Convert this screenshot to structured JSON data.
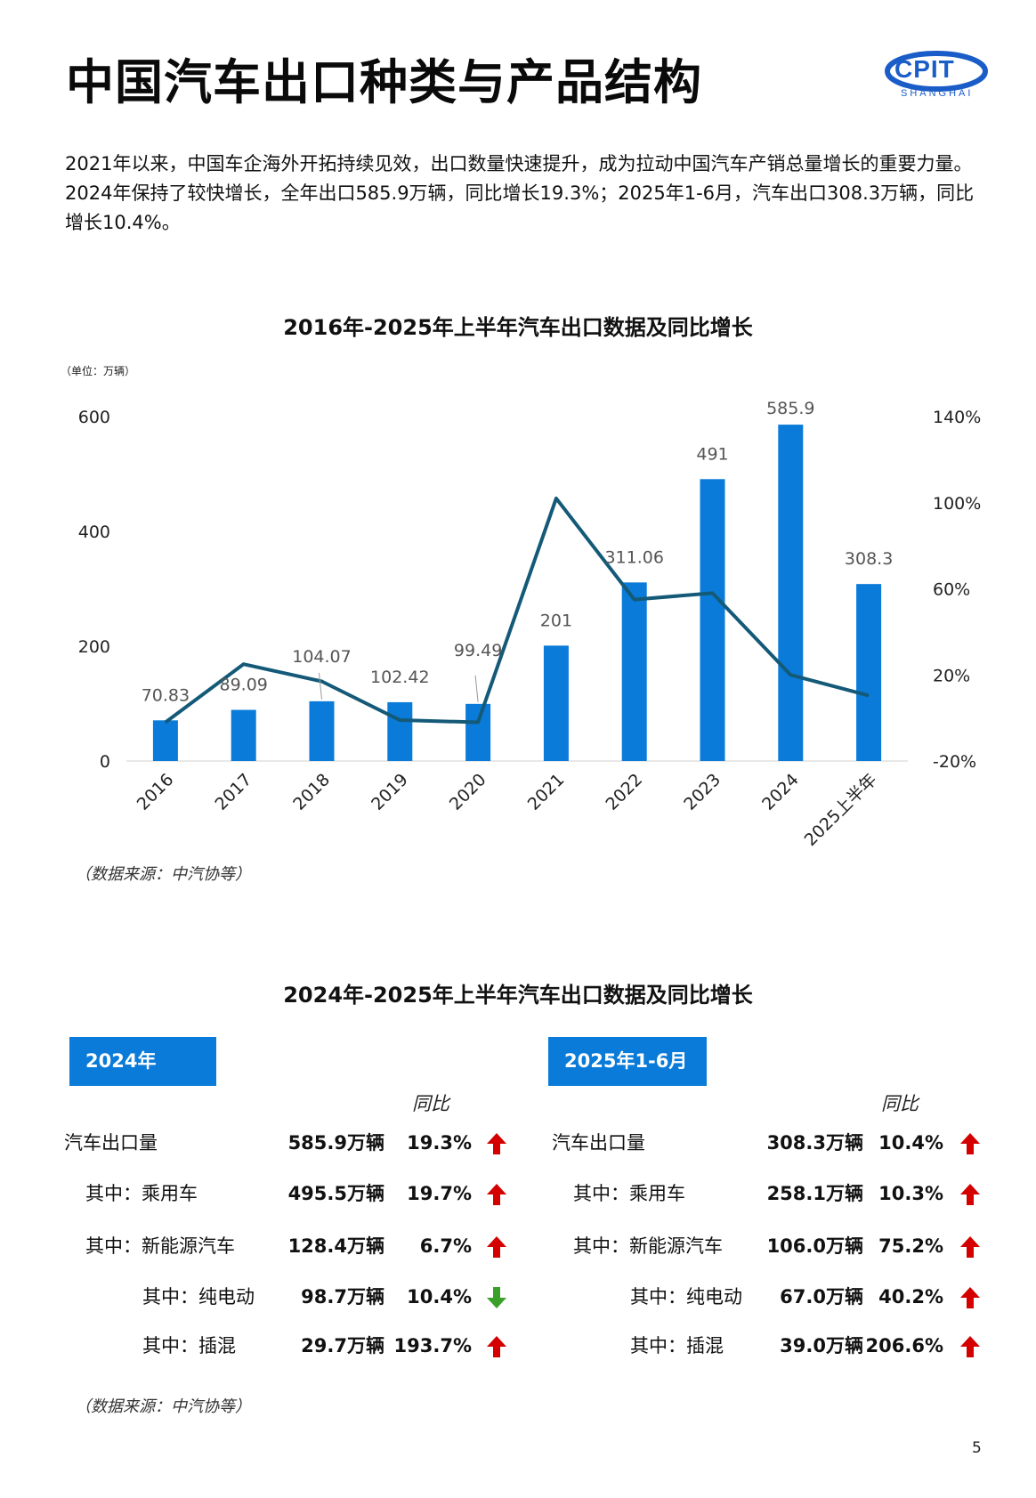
{
  "header": {
    "title": "中国汽车出口种类与产品结构",
    "logo_text": "CPIT",
    "logo_sub": "SHANGHAI"
  },
  "intro": {
    "lines": [
      "2021年以来，中国车企海外开拓持续见效，出口数量快速提升，成为拉动中国汽车产销总量增长的重要力量。",
      "2024年保持了较快增长，全年出口585.9万辆，同比增长19.3%；2025年1-6月，汽车出口308.3万辆，同比",
      "增长10.4%。"
    ]
  },
  "chart_data": {
    "type": "bar",
    "title": "2016年-2025年上半年汽车出口数据及同比增长",
    "unit_label": "（单位：万辆）",
    "categories": [
      "2016",
      "2017",
      "2018",
      "2019",
      "2020",
      "2021",
      "2022",
      "2023",
      "2024",
      "2025上半年"
    ],
    "series": [
      {
        "values": [
          70.83,
          89.09,
          104.07,
          102.42,
          99.49,
          201,
          311.06,
          491,
          585.9,
          308.3
        ],
        "color": "#0a7bd8"
      },
      {
        "type": "line",
        "axis": "right",
        "values": [
          -2,
          25,
          17,
          -1,
          -2,
          102,
          55,
          58,
          20,
          10.4
        ],
        "color": "#145a78"
      }
    ],
    "data_labels": [
      "70.83",
      "89.09",
      "104.07",
      "102.42",
      "99.49",
      "201",
      "311.06",
      "491",
      "585.9",
      "308.3"
    ],
    "ylim": [
      0,
      600
    ],
    "yticks": [
      "0",
      "200",
      "400",
      "600"
    ],
    "y2lim": [
      -20,
      140
    ],
    "y2ticks": [
      "-20%",
      "20%",
      "60%",
      "100%",
      "140%"
    ],
    "grid": false,
    "legend": "none"
  },
  "source1": "（数据来源：中汽协等）",
  "table_title": "2024年-2025年上半年汽车出口数据及同比增长",
  "panels": [
    {
      "heading": "2024年",
      "yoy_label": "同比",
      "rows": [
        {
          "label": "汽车出口量",
          "value": "585.9万辆",
          "pct": "19.3%",
          "trend": "up"
        },
        {
          "label": "其中：乘用车",
          "value": "495.5万辆",
          "pct": "19.7%",
          "trend": "up"
        },
        {
          "label": "其中：新能源汽车",
          "value": "128.4万辆",
          "pct": "6.7%",
          "trend": "up"
        },
        {
          "label": "其中：纯电动",
          "value": "98.7万辆",
          "pct": "10.4%",
          "trend": "down"
        },
        {
          "label": "其中：插混",
          "value": "29.7万辆",
          "pct": "193.7%",
          "trend": "up"
        }
      ]
    },
    {
      "heading": "2025年1-6月",
      "yoy_label": "同比",
      "rows": [
        {
          "label": "汽车出口量",
          "value": "308.3万辆",
          "pct": "10.4%",
          "trend": "up"
        },
        {
          "label": "其中：乘用车",
          "value": "258.1万辆",
          "pct": "10.3%",
          "trend": "up"
        },
        {
          "label": "其中：新能源汽车",
          "value": "106.0万辆",
          "pct": "75.2%",
          "trend": "up"
        },
        {
          "label": "其中：纯电动",
          "value": "67.0万辆",
          "pct": "40.2%",
          "trend": "up"
        },
        {
          "label": "其中：插混",
          "value": "39.0万辆",
          "pct": "206.6%",
          "trend": "up"
        }
      ]
    }
  ],
  "source2": "（数据来源：中汽协等）",
  "page_number": "5",
  "colors": {
    "bar": "#0a7bd8",
    "line": "#145a78",
    "arrow_up": "#d40000",
    "arrow_down": "#3aa02a",
    "panel_header": "#0a7bd8"
  }
}
